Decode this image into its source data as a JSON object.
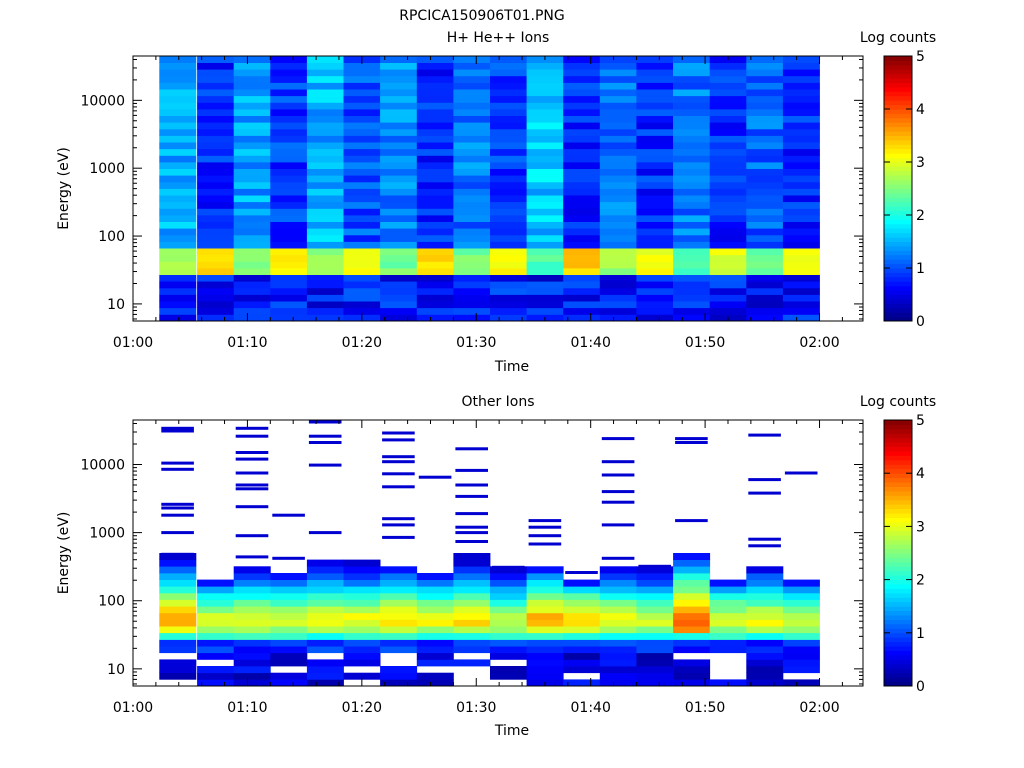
{
  "page_title": "RPCICA150906T01.PNG",
  "colorbar_ticks": [
    "0",
    "1",
    "2",
    "3",
    "4",
    "5"
  ],
  "chart_data": [
    {
      "type": "heatmap",
      "title": "H+ He++ Ions",
      "xlabel": "Time",
      "ylabel": "Energy (eV)",
      "colorbar_label": "Log counts",
      "colorbar_range": [
        0,
        5
      ],
      "colormap": "jet",
      "y_scale": "log",
      "ylim": [
        5.6,
        45000
      ],
      "x_tick_labels": [
        "01:00",
        "01:10",
        "01:20",
        "01:30",
        "01:40",
        "01:50",
        "02:00"
      ],
      "y_tick_labels": [
        "10",
        "100",
        "1000",
        "10000"
      ],
      "scan_starts_min": [
        2.3,
        5.6,
        8.8,
        12.0,
        15.2,
        18.4,
        21.6,
        24.8,
        28.0,
        31.2,
        34.4,
        37.6,
        40.8,
        44.0,
        47.2,
        50.4,
        53.6,
        56.8
      ],
      "scan_width_min": 3.2,
      "bg_levels": [
        1.5,
        0.8,
        1.4,
        0.9,
        1.5,
        1.0,
        1.3,
        0.8,
        1.2,
        0.9,
        1.6,
        0.8,
        1.2,
        0.8,
        1.2,
        0.8,
        1.1,
        0.8
      ],
      "peak_levels": [
        2.8,
        3.4,
        2.6,
        3.3,
        2.7,
        3.3,
        2.6,
        3.5,
        2.6,
        3.3,
        2.4,
        3.5,
        2.8,
        3.2,
        2.4,
        3.1,
        2.5,
        3.2
      ],
      "peak_energy_ev": [
        40,
        55
      ]
    },
    {
      "type": "heatmap",
      "title": "Other Ions",
      "xlabel": "Time",
      "ylabel": "Energy (eV)",
      "colorbar_label": "Log counts",
      "colorbar_range": [
        0,
        5
      ],
      "colormap": "jet",
      "y_scale": "log",
      "ylim": [
        5.6,
        45000
      ],
      "x_tick_labels": [
        "01:00",
        "01:10",
        "01:20",
        "01:30",
        "01:40",
        "01:50",
        "02:00"
      ],
      "y_tick_labels": [
        "10",
        "100",
        "1000",
        "10000"
      ],
      "scan_starts_min": [
        2.3,
        5.6,
        8.8,
        12.0,
        15.2,
        18.4,
        21.6,
        24.8,
        28.0,
        31.2,
        34.4,
        37.6,
        40.8,
        44.0,
        47.2,
        50.4,
        53.6,
        56.8
      ],
      "scan_width_min": 3.2,
      "top_energy_ev": [
        500,
        210,
        300,
        270,
        370,
        370,
        300,
        240,
        450,
        300,
        290,
        215,
        330,
        300,
        530,
        200,
        290,
        210
      ],
      "peak_levels": [
        3.7,
        3.0,
        3.2,
        3.1,
        3.3,
        3.2,
        3.4,
        3.2,
        3.4,
        3.0,
        3.6,
        3.4,
        3.2,
        3.0,
        4.1,
        3.1,
        3.2,
        3.0
      ],
      "peak_energy_ev": [
        45,
        60
      ],
      "sparse_lines_ev": [
        [
          34000,
          31000,
          10500,
          8500,
          2600,
          2300,
          1800,
          1000,
          480
        ],
        [],
        [
          34000,
          26000,
          15000,
          12000,
          7500,
          5000,
          4400,
          2400,
          900,
          440
        ],
        [
          1800,
          420
        ],
        [
          42000,
          26000,
          21000,
          9800,
          1000
        ],
        [],
        [
          29000,
          23000,
          13000,
          11000,
          7300,
          4700,
          1600,
          1300,
          850
        ],
        [
          6500
        ],
        [
          17000,
          8200,
          5000,
          3400,
          1900,
          1200,
          1000,
          740
        ],
        [
          310
        ],
        [
          1500,
          1200,
          900,
          680
        ],
        [
          260
        ],
        [
          24000,
          11000,
          7000,
          4000,
          2800,
          1300,
          420
        ],
        [
          320
        ],
        [
          24000,
          21000,
          1500
        ],
        [],
        [
          27000,
          6000,
          3800,
          800,
          640
        ],
        [
          7500
        ]
      ]
    }
  ]
}
